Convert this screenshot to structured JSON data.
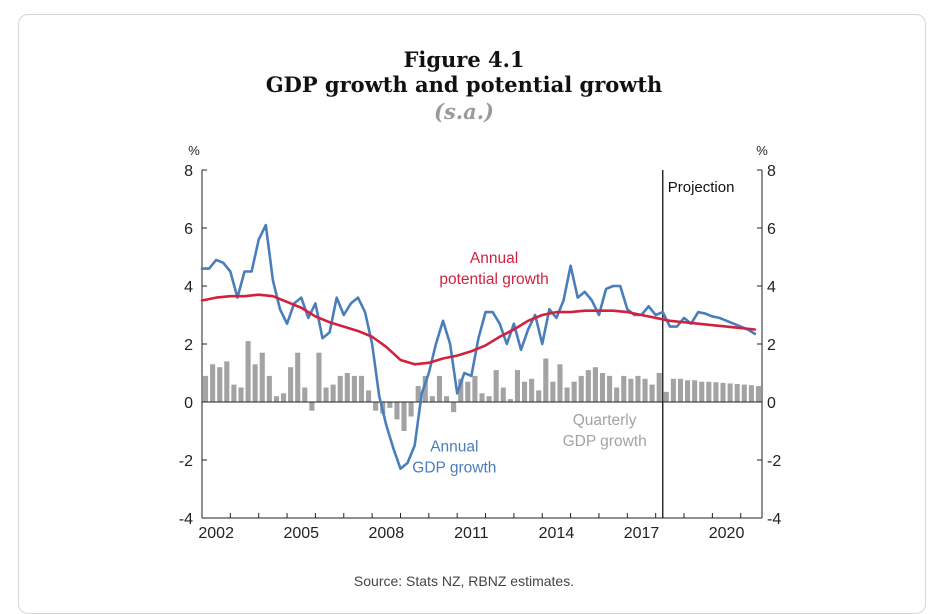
{
  "chart_data": {
    "type": "line",
    "title": "Figure 4.1",
    "subtitle": "GDP growth and potential growth",
    "note": "(s.a.)",
    "source": "Source: Stats NZ, RBNZ estimates.",
    "y_unit_left": "%",
    "y_unit_right": "%",
    "ylim": [
      -4,
      8
    ],
    "yticks": [
      -4,
      -2,
      0,
      2,
      4,
      6,
      8
    ],
    "xlim": [
      2002.0,
      2021.75
    ],
    "xtick_labels": [
      "2002",
      "2005",
      "2008",
      "2011",
      "2014",
      "2017",
      "2020"
    ],
    "projection_start": 2018.25,
    "projection_label": "Projection",
    "grid": false,
    "series": [
      {
        "name": "Annual GDP growth",
        "label_lines": [
          "Annual",
          "GDP growth"
        ],
        "type": "line",
        "color": "#4a7ebb",
        "x": [
          2002.0,
          2002.25,
          2002.5,
          2002.75,
          2003.0,
          2003.25,
          2003.5,
          2003.75,
          2004.0,
          2004.25,
          2004.5,
          2004.75,
          2005.0,
          2005.25,
          2005.5,
          2005.75,
          2006.0,
          2006.25,
          2006.5,
          2006.75,
          2007.0,
          2007.25,
          2007.5,
          2007.75,
          2008.0,
          2008.25,
          2008.5,
          2008.75,
          2009.0,
          2009.25,
          2009.5,
          2009.75,
          2010.0,
          2010.25,
          2010.5,
          2010.75,
          2011.0,
          2011.25,
          2011.5,
          2011.75,
          2012.0,
          2012.25,
          2012.5,
          2012.75,
          2013.0,
          2013.25,
          2013.5,
          2013.75,
          2014.0,
          2014.25,
          2014.5,
          2014.75,
          2015.0,
          2015.25,
          2015.5,
          2015.75,
          2016.0,
          2016.25,
          2016.5,
          2016.75,
          2017.0,
          2017.25,
          2017.5,
          2017.75,
          2018.0,
          2018.25,
          2018.5,
          2018.75,
          2019.0,
          2019.25,
          2019.5,
          2019.75,
          2020.0,
          2020.25,
          2020.5,
          2020.75,
          2021.0,
          2021.25,
          2021.5
        ],
        "values": [
          4.6,
          4.6,
          4.9,
          4.8,
          4.5,
          3.6,
          4.5,
          4.5,
          5.6,
          6.1,
          4.2,
          3.2,
          2.7,
          3.4,
          3.6,
          2.9,
          3.4,
          2.2,
          2.4,
          3.6,
          3.0,
          3.4,
          3.6,
          3.1,
          2.0,
          0.2,
          -0.8,
          -1.6,
          -2.3,
          -2.1,
          -1.5,
          0.3,
          1.0,
          2.0,
          2.8,
          2.0,
          0.3,
          1.0,
          0.9,
          2.2,
          3.1,
          3.1,
          2.7,
          2.0,
          2.7,
          1.8,
          2.5,
          3.0,
          2.0,
          3.2,
          2.9,
          3.5,
          4.7,
          3.6,
          3.8,
          3.5,
          3.0,
          3.9,
          4.0,
          4.0,
          3.2,
          3.0,
          3.0,
          3.3,
          3.0,
          3.1,
          2.6,
          2.6,
          2.9,
          2.7,
          3.1,
          3.05,
          2.95,
          2.9,
          2.8,
          2.7,
          2.6,
          2.5,
          2.35
        ]
      },
      {
        "name": "Annual potential growth",
        "label_lines": [
          "Annual",
          "potential growth"
        ],
        "type": "line",
        "color": "#d0223e",
        "x": [
          2002.0,
          2002.5,
          2003.0,
          2003.5,
          2004.0,
          2004.5,
          2005.0,
          2005.5,
          2006.0,
          2006.5,
          2007.0,
          2007.5,
          2008.0,
          2008.5,
          2009.0,
          2009.5,
          2010.0,
          2010.5,
          2011.0,
          2011.5,
          2012.0,
          2012.5,
          2013.0,
          2013.5,
          2014.0,
          2014.5,
          2015.0,
          2015.5,
          2016.0,
          2016.5,
          2017.0,
          2017.5,
          2018.0,
          2018.5,
          2019.0,
          2019.5,
          2020.0,
          2020.5,
          2021.0,
          2021.5
        ],
        "values": [
          3.5,
          3.6,
          3.65,
          3.65,
          3.7,
          3.65,
          3.45,
          3.25,
          2.95,
          2.75,
          2.6,
          2.45,
          2.25,
          1.9,
          1.45,
          1.3,
          1.35,
          1.5,
          1.6,
          1.75,
          1.95,
          2.25,
          2.5,
          2.8,
          3.0,
          3.1,
          3.1,
          3.15,
          3.15,
          3.15,
          3.1,
          3.0,
          2.9,
          2.8,
          2.75,
          2.7,
          2.65,
          2.6,
          2.55,
          2.5
        ]
      },
      {
        "name": "Quarterly GDP growth",
        "label_lines": [
          "Quarterly",
          "GDP growth"
        ],
        "type": "bar",
        "color": "#a3a3a3",
        "x": [
          2002.0,
          2002.25,
          2002.5,
          2002.75,
          2003.0,
          2003.25,
          2003.5,
          2003.75,
          2004.0,
          2004.25,
          2004.5,
          2004.75,
          2005.0,
          2005.25,
          2005.5,
          2005.75,
          2006.0,
          2006.25,
          2006.5,
          2006.75,
          2007.0,
          2007.25,
          2007.5,
          2007.75,
          2008.0,
          2008.25,
          2008.5,
          2008.75,
          2009.0,
          2009.25,
          2009.5,
          2009.75,
          2010.0,
          2010.25,
          2010.5,
          2010.75,
          2011.0,
          2011.25,
          2011.5,
          2011.75,
          2012.0,
          2012.25,
          2012.5,
          2012.75,
          2013.0,
          2013.25,
          2013.5,
          2013.75,
          2014.0,
          2014.25,
          2014.5,
          2014.75,
          2015.0,
          2015.25,
          2015.5,
          2015.75,
          2016.0,
          2016.25,
          2016.5,
          2016.75,
          2017.0,
          2017.25,
          2017.5,
          2017.75,
          2018.0,
          2018.25,
          2018.5,
          2018.75,
          2019.0,
          2019.25,
          2019.5,
          2019.75,
          2020.0,
          2020.25,
          2020.5,
          2020.75,
          2021.0,
          2021.25,
          2021.5
        ],
        "values": [
          0.9,
          1.3,
          1.2,
          1.4,
          0.6,
          0.5,
          2.1,
          1.3,
          1.7,
          0.9,
          0.2,
          0.3,
          1.2,
          1.7,
          0.5,
          -0.3,
          1.7,
          0.5,
          0.6,
          0.9,
          1.0,
          0.9,
          0.9,
          0.4,
          -0.3,
          -0.4,
          -0.2,
          -0.6,
          -1.0,
          -0.5,
          0.55,
          0.9,
          0.2,
          0.9,
          0.2,
          -0.35,
          0.8,
          0.7,
          0.9,
          0.3,
          0.2,
          1.1,
          0.5,
          0.1,
          1.1,
          0.7,
          0.8,
          0.4,
          1.5,
          0.7,
          1.3,
          0.5,
          0.7,
          0.9,
          1.1,
          1.2,
          1.0,
          0.9,
          0.5,
          0.9,
          0.8,
          0.9,
          0.8,
          0.6,
          1.0,
          0.35,
          0.8,
          0.8,
          0.75,
          0.75,
          0.7,
          0.7,
          0.68,
          0.66,
          0.64,
          0.62,
          0.6,
          0.58,
          0.55
        ]
      }
    ]
  }
}
